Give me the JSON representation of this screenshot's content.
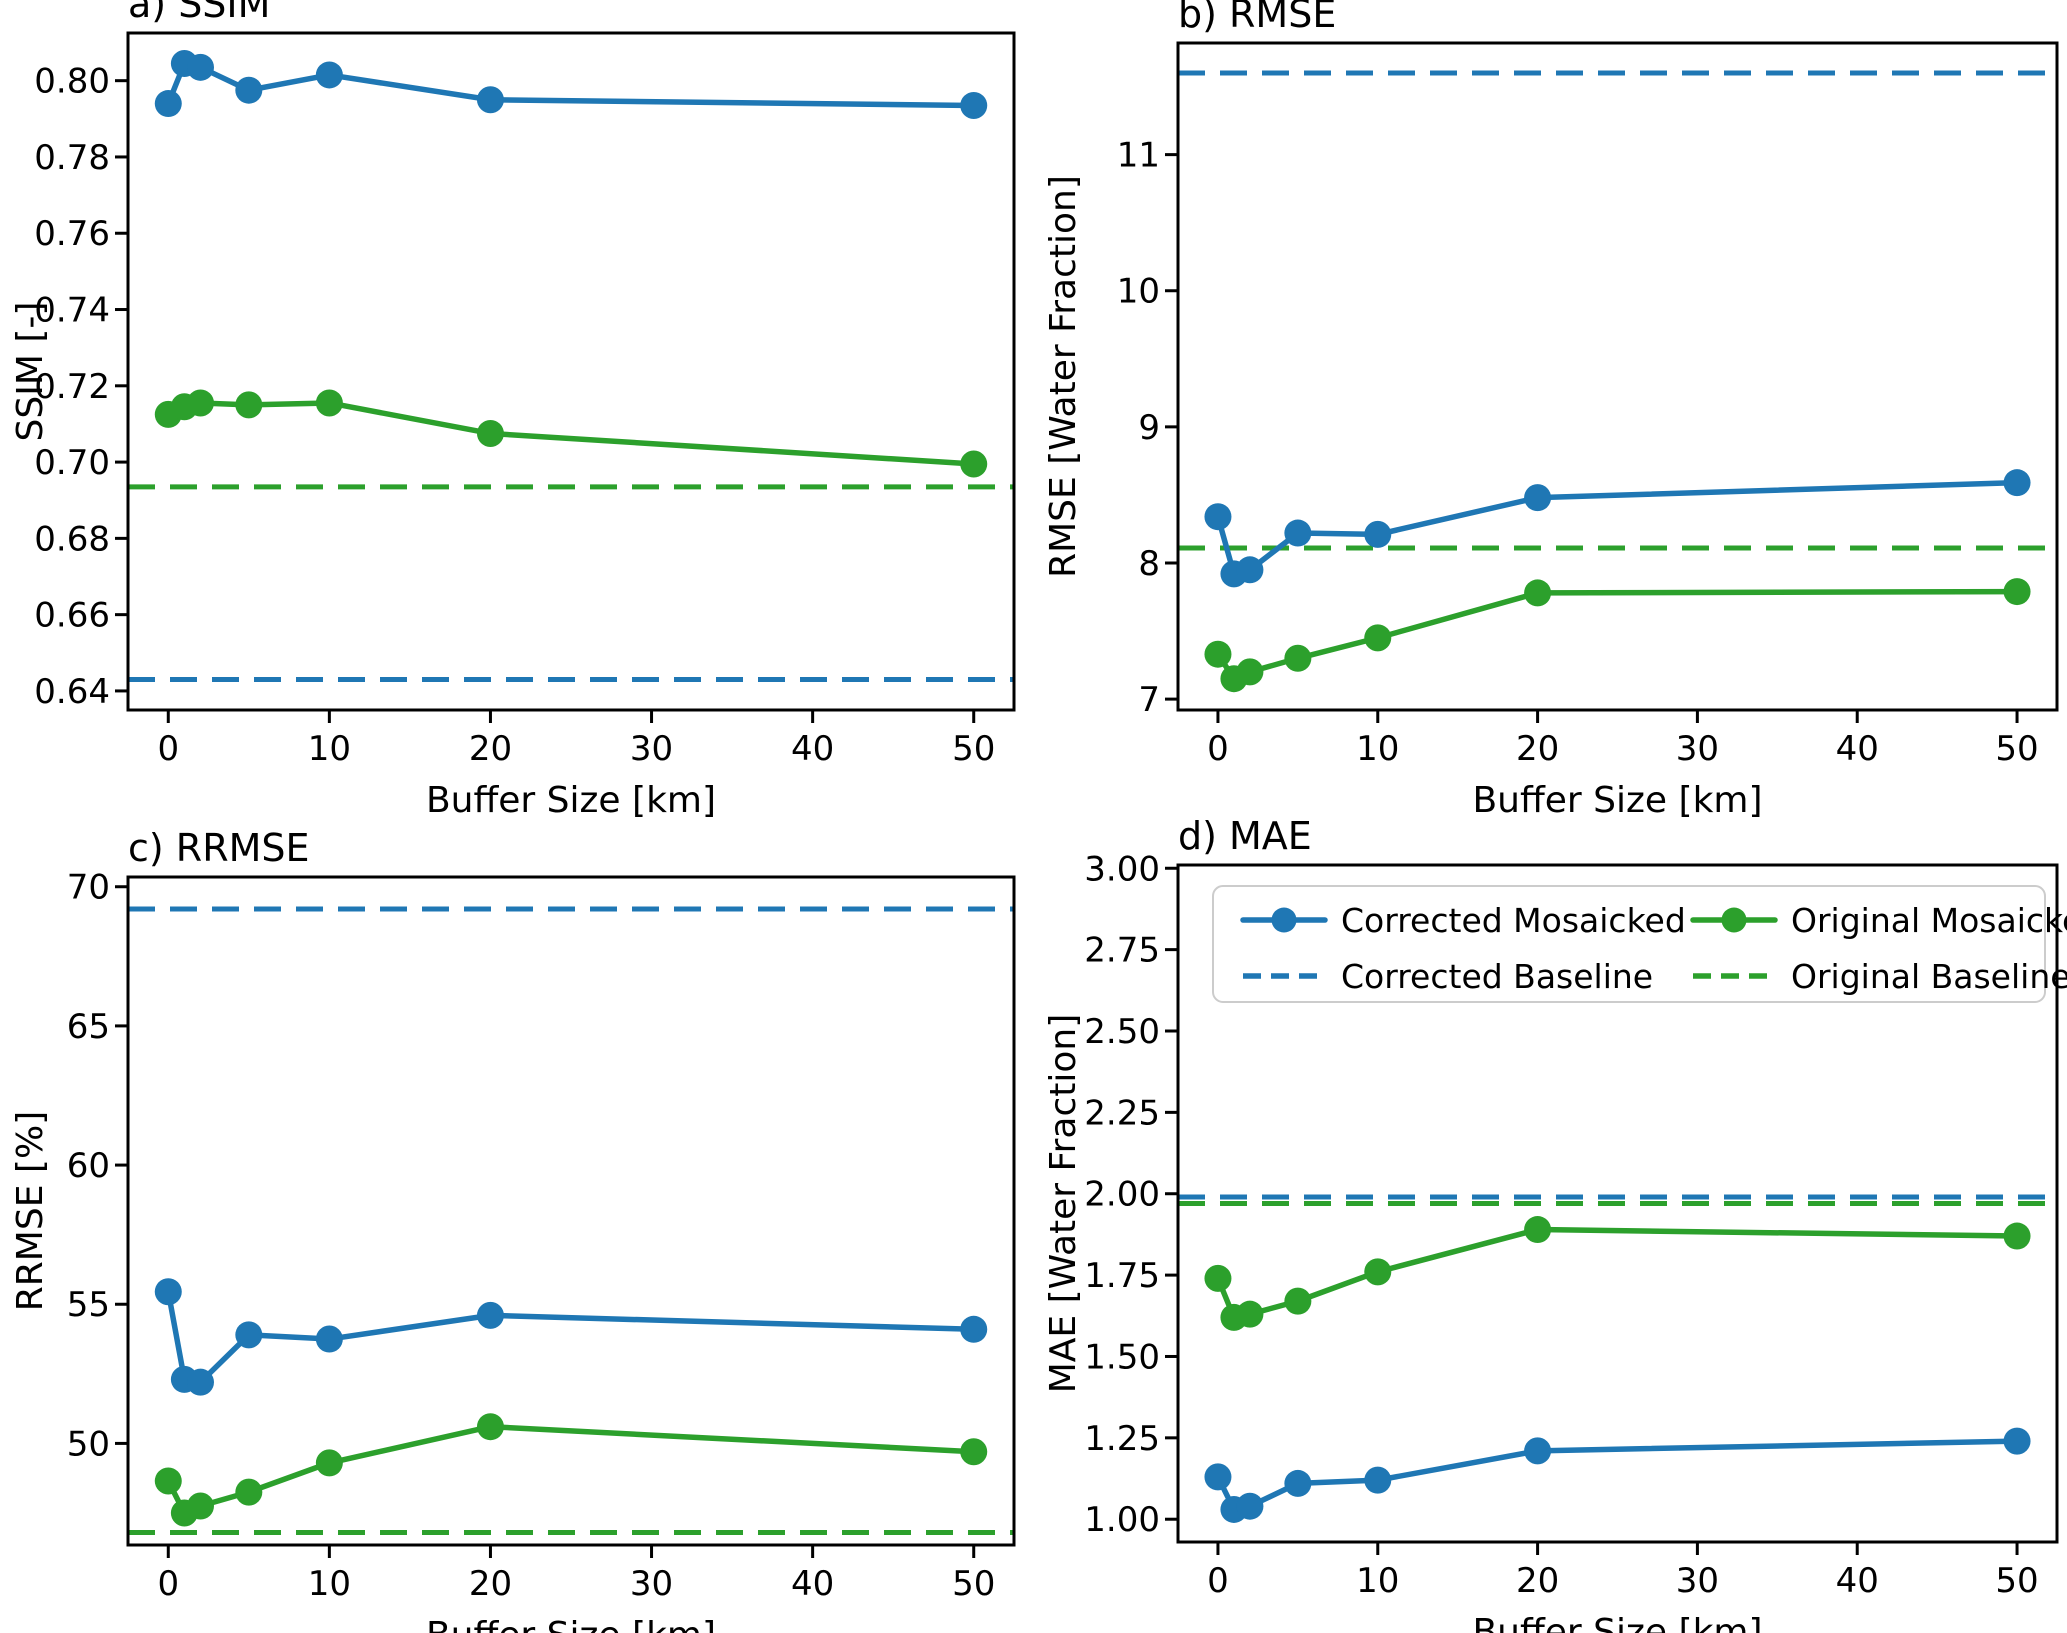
{
  "figure": {
    "background": "#ffffff",
    "colors": {
      "corrected": "#1f77b4",
      "original": "#2ca02c",
      "axis": "#000000",
      "legend_border": "#cccccc"
    },
    "legend": {
      "position": "upper-area-panel-d",
      "columns": 2,
      "items": [
        {
          "label": "Corrected Mosaicked",
          "color": "#1f77b4",
          "style": "solid-marker"
        },
        {
          "label": "Corrected Baseline",
          "color": "#1f77b4",
          "style": "dashed"
        },
        {
          "label": "Original Mosaicked",
          "color": "#2ca02c",
          "style": "solid-marker"
        },
        {
          "label": "Original Baseline",
          "color": "#2ca02c",
          "style": "dashed"
        }
      ]
    }
  },
  "chart_data": [
    {
      "id": "a",
      "type": "line",
      "title": "a) SSIM",
      "xlabel": "Buffer Size [km]",
      "ylabel": "SSIM [-]",
      "x": [
        0,
        1,
        2,
        5,
        10,
        20,
        50
      ],
      "xlim": [
        -2.5,
        52.5
      ],
      "xticks": [
        0,
        10,
        20,
        30,
        40,
        50
      ],
      "ylim": [
        0.635,
        0.8125
      ],
      "yticks": [
        0.64,
        0.66,
        0.68,
        0.7,
        0.72,
        0.74,
        0.76,
        0.78,
        0.8
      ],
      "ytick_decimals": 2,
      "grid": false,
      "series": [
        {
          "name": "Corrected Mosaicked",
          "color": "#1f77b4",
          "values": [
            0.794,
            0.8045,
            0.8035,
            0.7975,
            0.8015,
            0.795,
            0.7935
          ]
        },
        {
          "name": "Original Mosaicked",
          "color": "#2ca02c",
          "values": [
            0.7125,
            0.7145,
            0.7155,
            0.715,
            0.7155,
            0.7075,
            0.6995
          ]
        }
      ],
      "baselines": [
        {
          "name": "Corrected Baseline",
          "color": "#1f77b4",
          "value": 0.643
        },
        {
          "name": "Original Baseline",
          "color": "#2ca02c",
          "value": 0.6935
        }
      ],
      "legend": false
    },
    {
      "id": "b",
      "type": "line",
      "title": "b) RMSE",
      "xlabel": "Buffer Size [km]",
      "ylabel": "RMSE [Water Fraction]",
      "x": [
        0,
        1,
        2,
        5,
        10,
        20,
        50
      ],
      "xlim": [
        -2.5,
        52.5
      ],
      "xticks": [
        0,
        10,
        20,
        30,
        40,
        50
      ],
      "ylim": [
        6.92,
        11.82
      ],
      "yticks": [
        7,
        8,
        9,
        10,
        11
      ],
      "ytick_decimals": 0,
      "grid": false,
      "series": [
        {
          "name": "Corrected Mosaicked",
          "color": "#1f77b4",
          "values": [
            8.34,
            7.92,
            7.95,
            8.22,
            8.21,
            8.48,
            8.59
          ]
        },
        {
          "name": "Original Mosaicked",
          "color": "#2ca02c",
          "values": [
            7.33,
            7.15,
            7.2,
            7.3,
            7.45,
            7.78,
            7.79
          ]
        }
      ],
      "baselines": [
        {
          "name": "Corrected Baseline",
          "color": "#1f77b4",
          "value": 11.6
        },
        {
          "name": "Original Baseline",
          "color": "#2ca02c",
          "value": 8.11
        }
      ],
      "legend": false
    },
    {
      "id": "c",
      "type": "line",
      "title": "c) RRMSE",
      "xlabel": "Buffer Size [km]",
      "ylabel": "RRMSE [%]",
      "x": [
        0,
        1,
        2,
        5,
        10,
        20,
        50
      ],
      "xlim": [
        -2.5,
        52.5
      ],
      "xticks": [
        0,
        10,
        20,
        30,
        40,
        50
      ],
      "ylim": [
        46.35,
        70.35
      ],
      "yticks": [
        50,
        55,
        60,
        65,
        70
      ],
      "ytick_decimals": 0,
      "grid": false,
      "series": [
        {
          "name": "Corrected Mosaicked",
          "color": "#1f77b4",
          "values": [
            55.45,
            52.3,
            52.2,
            53.9,
            53.75,
            54.6,
            54.1
          ]
        },
        {
          "name": "Original Mosaicked",
          "color": "#2ca02c",
          "values": [
            48.65,
            47.5,
            47.75,
            48.25,
            49.3,
            50.6,
            49.7
          ]
        }
      ],
      "baselines": [
        {
          "name": "Corrected Baseline",
          "color": "#1f77b4",
          "value": 69.2
        },
        {
          "name": "Original Baseline",
          "color": "#2ca02c",
          "value": 46.8
        }
      ],
      "legend": false
    },
    {
      "id": "d",
      "type": "line",
      "title": "d) MAE",
      "xlabel": "Buffer Size [km]",
      "ylabel": "MAE [Water Fraction]",
      "x": [
        0,
        1,
        2,
        5,
        10,
        20,
        50
      ],
      "xlim": [
        -2.5,
        52.5
      ],
      "xticks": [
        0,
        10,
        20,
        30,
        40,
        50
      ],
      "ylim": [
        0.93,
        3.01
      ],
      "yticks": [
        1.0,
        1.25,
        1.5,
        1.75,
        2.0,
        2.25,
        2.5,
        2.75,
        3.0
      ],
      "ytick_decimals": 2,
      "grid": false,
      "series": [
        {
          "name": "Corrected Mosaicked",
          "color": "#1f77b4",
          "values": [
            1.13,
            1.03,
            1.04,
            1.11,
            1.12,
            1.21,
            1.24
          ]
        },
        {
          "name": "Original Mosaicked",
          "color": "#2ca02c",
          "values": [
            1.74,
            1.62,
            1.63,
            1.67,
            1.76,
            1.89,
            1.87
          ]
        }
      ],
      "baselines": [
        {
          "name": "Corrected Baseline",
          "color": "#1f77b4",
          "value": 1.99
        },
        {
          "name": "Original Baseline",
          "color": "#2ca02c",
          "value": 1.97
        }
      ],
      "legend": true
    }
  ]
}
